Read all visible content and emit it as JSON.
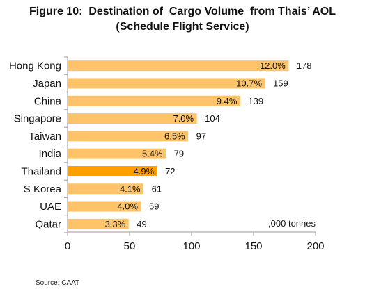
{
  "title_line1": "Figure 10:  Destination of  Cargo Volume  from Thais’ AOL",
  "title_line2": "(Schedule Flight Service)",
  "source": "Source: CAAT",
  "colors": {
    "bar": "#FFC469",
    "highlight": "#FF9F00"
  },
  "chart_data": {
    "type": "bar",
    "orientation": "horizontal",
    "categories": [
      "Hong Kong",
      "Japan",
      "China",
      "Singapore",
      "Taiwan",
      "India",
      "Thailand",
      "S Korea",
      "UAE",
      "Qatar"
    ],
    "values": [
      178,
      159,
      139,
      104,
      97,
      79,
      72,
      61,
      59,
      49
    ],
    "percent_labels": [
      "12.0%",
      "10.7%",
      "9.4%",
      "7.0%",
      "6.5%",
      "5.4%",
      "4.9%",
      "4.1%",
      "4.0%",
      "3.3%"
    ],
    "highlight_category": "Thailand",
    "unit_label": ",000 tonnes",
    "xlim": [
      0,
      200
    ],
    "xticks": [
      0,
      50,
      100,
      150,
      200
    ],
    "grid": false
  }
}
